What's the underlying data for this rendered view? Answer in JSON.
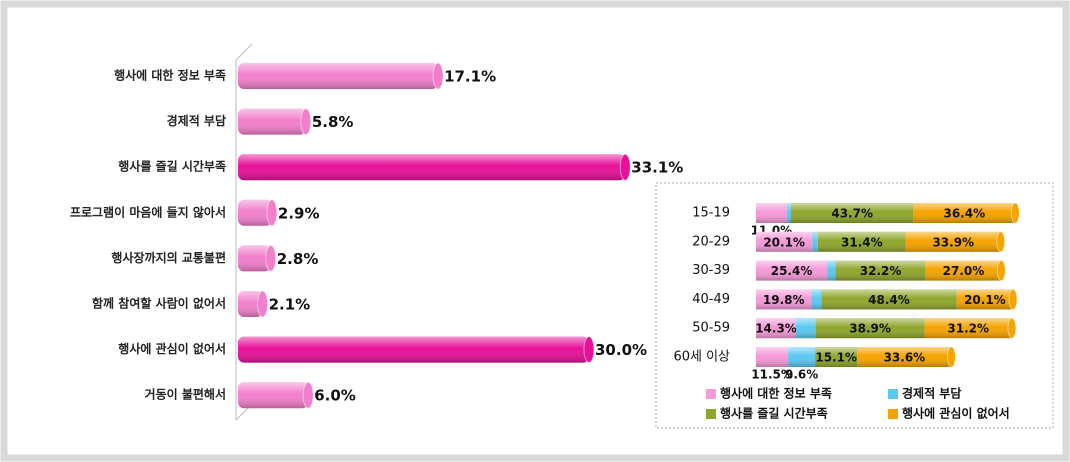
{
  "chart_data": [
    {
      "type": "bar",
      "categories": [
        "행사에 대한 정보 부족",
        "경제적 부담",
        "행사를 즐길 시간부족",
        "프로그램이 마음에 들지 않아서",
        "행사장까지의 교통불편",
        "함께 참여할 사람이 없어서",
        "행사에 관심이 없어서",
        "거동이 불편해서"
      ],
      "values": [
        17.1,
        5.8,
        33.1,
        2.9,
        2.8,
        2.1,
        30.0,
        6.0
      ],
      "value_labels": [
        "17.1%",
        "5.8%",
        "33.1%",
        "2.9%",
        "2.8%",
        "2.1%",
        "30.0%",
        "6.0%"
      ],
      "colors": [
        "#f27fcc",
        "#f27fcc",
        "#e8109a",
        "#f27fcc",
        "#f27fcc",
        "#f27fcc",
        "#e8109a",
        "#f27fcc"
      ]
    },
    {
      "type": "stacked_bar",
      "categories": [
        "15-19",
        "20-29",
        "30-39",
        "40-49",
        "50-59",
        "60세 이상"
      ],
      "series": [
        {
          "name": "행사에 대한 정보 부족",
          "color": "#f49ad8",
          "values": [
            11.0,
            20.1,
            25.4,
            19.8,
            14.3,
            11.5
          ],
          "value_labels": [
            "11.0%",
            "20.1%",
            "25.4%",
            "19.8%",
            "14.3%",
            "11.5%"
          ]
        },
        {
          "name": "경제적 부담",
          "color": "#5bc8f0",
          "values": [
            1.5,
            2.0,
            3.0,
            3.5,
            7.0,
            9.6
          ],
          "value_labels": [
            null,
            null,
            null,
            null,
            null,
            "9.6%"
          ]
        },
        {
          "name": "행사를 즐길 시간부족",
          "color": "#8fa62c",
          "values": [
            43.7,
            31.4,
            32.2,
            48.4,
            38.9,
            15.1
          ],
          "value_labels": [
            "43.7%",
            "31.4%",
            "32.2%",
            "48.4%",
            "38.9%",
            "15.1%"
          ]
        },
        {
          "name": "행사에 관심이 없어서",
          "color": "#f5a300",
          "values": [
            36.4,
            33.9,
            27.0,
            20.1,
            31.2,
            33.6
          ],
          "value_labels": [
            "36.4%",
            "33.9%",
            "27.0%",
            "20.1%",
            "31.2%",
            "33.6%"
          ]
        }
      ]
    }
  ]
}
